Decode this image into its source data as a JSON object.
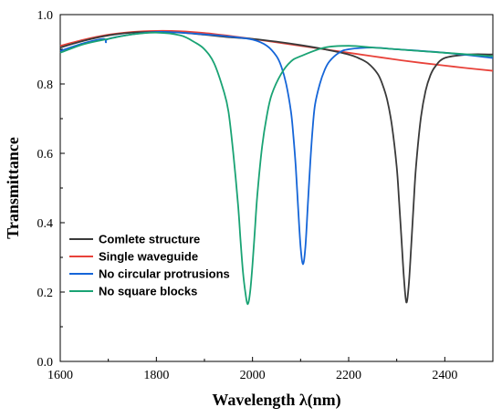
{
  "chart_data": {
    "type": "line",
    "title": "",
    "xlabel": "Wavelength λ(nm)",
    "ylabel": "Transmittance",
    "xlim": [
      1600,
      2500
    ],
    "ylim": [
      0.0,
      1.0
    ],
    "xticks": [
      1600,
      1800,
      2000,
      2200,
      2400
    ],
    "yticks": [
      0.0,
      0.2,
      0.4,
      0.6,
      0.8,
      1.0
    ],
    "xtick_labels": [
      "1600",
      "1800",
      "2000",
      "2200",
      "2400"
    ],
    "ytick_labels": [
      "0.0",
      "0.2",
      "0.4",
      "0.6",
      "0.8",
      "1.0"
    ],
    "grid": false,
    "legend_position": "lower-left",
    "series": [
      {
        "name": "Comlete structure",
        "color": "#3a3a3a",
        "x": [
          1600,
          1650,
          1700,
          1750,
          1800,
          1850,
          1900,
          1950,
          2000,
          2050,
          2100,
          2150,
          2200,
          2220,
          2240,
          2260,
          2270,
          2280,
          2290,
          2300,
          2305,
          2310,
          2315,
          2320,
          2325,
          2330,
          2335,
          2340,
          2350,
          2360,
          2370,
          2380,
          2400,
          2450,
          2500
        ],
        "y": [
          0.905,
          0.925,
          0.94,
          0.948,
          0.95,
          0.948,
          0.942,
          0.935,
          0.93,
          0.922,
          0.912,
          0.9,
          0.885,
          0.875,
          0.86,
          0.83,
          0.8,
          0.755,
          0.68,
          0.56,
          0.46,
          0.35,
          0.24,
          0.17,
          0.22,
          0.33,
          0.45,
          0.56,
          0.7,
          0.78,
          0.825,
          0.85,
          0.875,
          0.885,
          0.885
        ]
      },
      {
        "name": "Single waveguide",
        "color": "#e8423a",
        "x": [
          1600,
          1650,
          1700,
          1750,
          1800,
          1850,
          1900,
          1950,
          2000,
          2050,
          2100,
          2150,
          2200,
          2250,
          2300,
          2350,
          2400,
          2450,
          2500
        ],
        "y": [
          0.91,
          0.928,
          0.942,
          0.95,
          0.953,
          0.952,
          0.947,
          0.939,
          0.93,
          0.92,
          0.91,
          0.9,
          0.89,
          0.88,
          0.87,
          0.861,
          0.853,
          0.845,
          0.838
        ]
      },
      {
        "name": "No circular protrusions",
        "color": "#1565d8",
        "x": [
          1600,
          1650,
          1690,
          1695,
          1700,
          1750,
          1800,
          1850,
          1900,
          1950,
          2000,
          2030,
          2050,
          2060,
          2070,
          2080,
          2085,
          2090,
          2095,
          2100,
          2105,
          2110,
          2115,
          2120,
          2125,
          2130,
          2140,
          2150,
          2160,
          2180,
          2200,
          2250,
          2300,
          2400,
          2500
        ],
        "y": [
          0.895,
          0.918,
          0.93,
          0.92,
          0.93,
          0.943,
          0.95,
          0.948,
          0.943,
          0.937,
          0.928,
          0.91,
          0.88,
          0.85,
          0.8,
          0.72,
          0.65,
          0.56,
          0.44,
          0.33,
          0.28,
          0.33,
          0.45,
          0.57,
          0.67,
          0.74,
          0.8,
          0.84,
          0.865,
          0.89,
          0.9,
          0.905,
          0.9,
          0.89,
          0.875
        ]
      },
      {
        "name": "No square blocks",
        "color": "#1aa374",
        "x": [
          1600,
          1650,
          1700,
          1750,
          1800,
          1850,
          1880,
          1900,
          1920,
          1940,
          1950,
          1960,
          1970,
          1975,
          1980,
          1985,
          1990,
          1995,
          2000,
          2005,
          2010,
          2020,
          2030,
          2040,
          2060,
          2080,
          2100,
          2150,
          2200,
          2250,
          2300,
          2400,
          2500
        ],
        "y": [
          0.89,
          0.915,
          0.93,
          0.943,
          0.948,
          0.94,
          0.92,
          0.9,
          0.86,
          0.78,
          0.72,
          0.6,
          0.45,
          0.35,
          0.26,
          0.2,
          0.165,
          0.2,
          0.28,
          0.38,
          0.48,
          0.62,
          0.71,
          0.77,
          0.83,
          0.865,
          0.88,
          0.905,
          0.91,
          0.905,
          0.9,
          0.89,
          0.88
        ]
      }
    ]
  }
}
